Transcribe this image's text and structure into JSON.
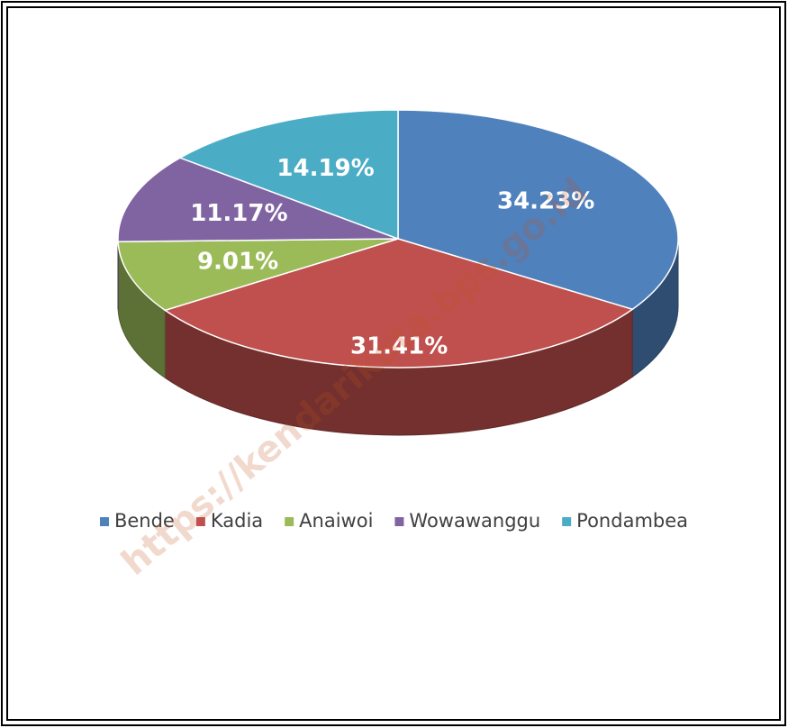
{
  "chart_data": {
    "type": "pie",
    "categories": [
      "Bende",
      "Kadia",
      "Anaiwoi",
      "Wowawanggu",
      "Pondambea"
    ],
    "values": [
      34.23,
      31.41,
      9.01,
      11.17,
      14.19
    ],
    "value_labels": [
      "34.23%",
      "31.41%",
      "9.01%",
      "11.17%",
      "14.19%"
    ],
    "colors": [
      "#4f81bd",
      "#c0504d",
      "#9bbb59",
      "#8064a2",
      "#4bacc6"
    ],
    "legend": "bottom",
    "watermark": "https://kendarikota.bps.go.id"
  }
}
